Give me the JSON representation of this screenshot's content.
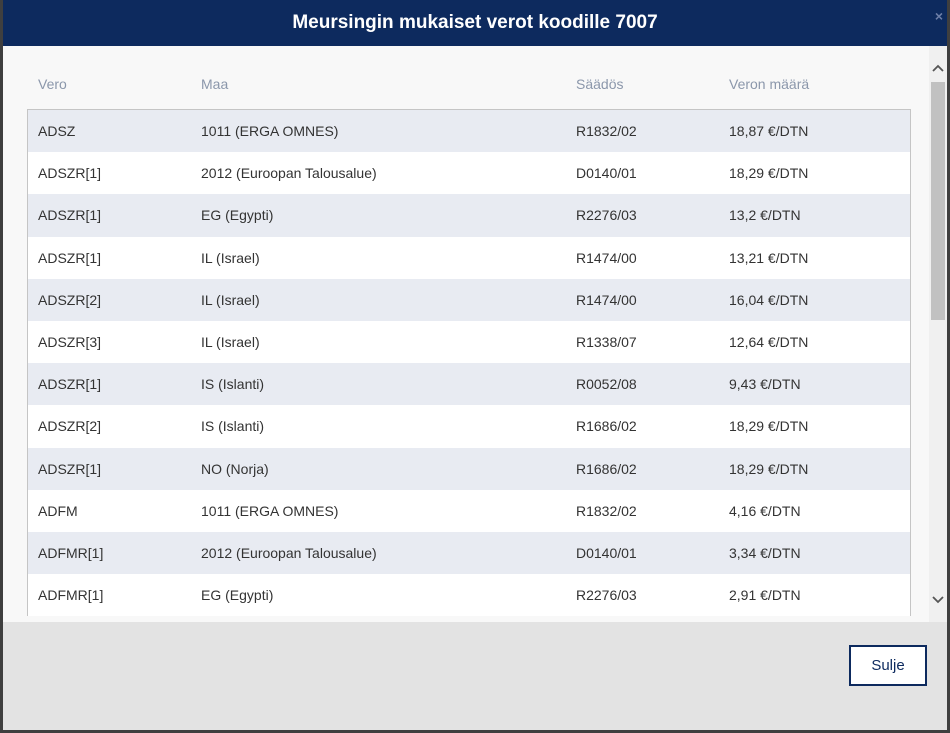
{
  "dialog": {
    "title": "Meursingin mukaiset verot koodille 7007",
    "close_icon": "×"
  },
  "table": {
    "headers": [
      "Vero",
      "Maa",
      "Säädös",
      "Veron määrä"
    ],
    "rows": [
      [
        "ADSZ",
        "1011 (ERGA OMNES)",
        "R1832/02",
        "18,87 €/DTN"
      ],
      [
        "ADSZR[1]",
        "2012 (Euroopan Talousalue)",
        "D0140/01",
        "18,29 €/DTN"
      ],
      [
        "ADSZR[1]",
        "EG (Egypti)",
        "R2276/03",
        "13,2 €/DTN"
      ],
      [
        "ADSZR[1]",
        "IL (Israel)",
        "R1474/00",
        "13,21 €/DTN"
      ],
      [
        "ADSZR[2]",
        "IL (Israel)",
        "R1474/00",
        "16,04 €/DTN"
      ],
      [
        "ADSZR[3]",
        "IL (Israel)",
        "R1338/07",
        "12,64 €/DTN"
      ],
      [
        "ADSZR[1]",
        "IS (Islanti)",
        "R0052/08",
        "9,43 €/DTN"
      ],
      [
        "ADSZR[2]",
        "IS (Islanti)",
        "R1686/02",
        "18,29 €/DTN"
      ],
      [
        "ADSZR[1]",
        "NO (Norja)",
        "R1686/02",
        "18,29 €/DTN"
      ],
      [
        "ADFM",
        "1011 (ERGA OMNES)",
        "R1832/02",
        "4,16 €/DTN"
      ],
      [
        "ADFMR[1]",
        "2012 (Euroopan Talousalue)",
        "D0140/01",
        "3,34 €/DTN"
      ],
      [
        "ADFMR[1]",
        "EG (Egypti)",
        "R2276/03",
        "2,91 €/DTN"
      ]
    ]
  },
  "scrollbar": {
    "up_icon": "chevron-up-icon",
    "down_icon": "chevron-down-icon"
  },
  "footer": {
    "close_label": "Sulje"
  },
  "colors": {
    "header_bg": "#0d2a5e",
    "row_alt": "#e8ebf2",
    "header_text_muted": "#8b97ab"
  }
}
